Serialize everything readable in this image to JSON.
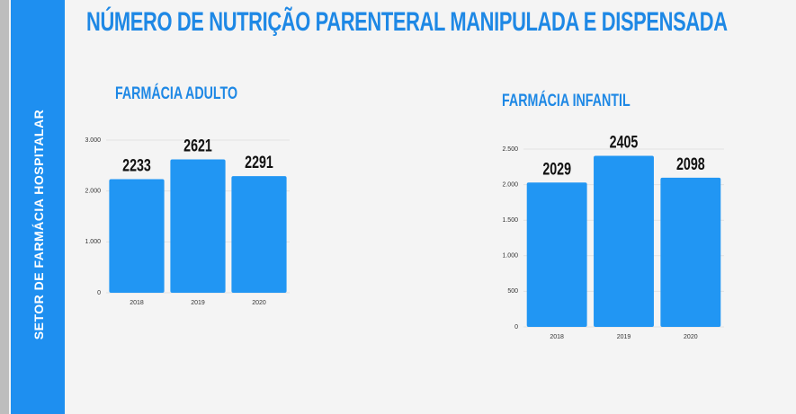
{
  "sidebar": "SETOR DE FARMÁCIA HOSPITALAR",
  "title": "NÚMERO DE NUTRIÇÃO PARENTERAL MANIPULADA E DISPENSADA",
  "chart_data": [
    {
      "type": "bar",
      "title": "FARMÁCIA ADULTO",
      "categories": [
        "2018",
        "2019",
        "2020"
      ],
      "values": [
        2233,
        2621,
        2291
      ],
      "color": "#2196f3",
      "ylim": [
        0,
        3000
      ],
      "yticks": [
        0,
        {
          "value": 1000,
          "label": "1.000"
        },
        {
          "value": 2000,
          "label": "2.000"
        },
        {
          "value": 3000,
          "label": "3.000"
        }
      ],
      "grid": true
    },
    {
      "type": "bar",
      "title": "FARMÁCIA INFANTIL",
      "categories": [
        "2018",
        "2019",
        "2020"
      ],
      "values": [
        2029,
        2405,
        2098
      ],
      "color": "#2196f3",
      "ylim": [
        0,
        2500
      ],
      "yticks": [
        0,
        500,
        {
          "value": 1000,
          "label": "1.000"
        },
        {
          "value": 1500,
          "label": "1.500"
        },
        {
          "value": 2000,
          "label": "2.000"
        },
        {
          "value": 2500,
          "label": "2.500"
        }
      ],
      "grid": true
    }
  ]
}
